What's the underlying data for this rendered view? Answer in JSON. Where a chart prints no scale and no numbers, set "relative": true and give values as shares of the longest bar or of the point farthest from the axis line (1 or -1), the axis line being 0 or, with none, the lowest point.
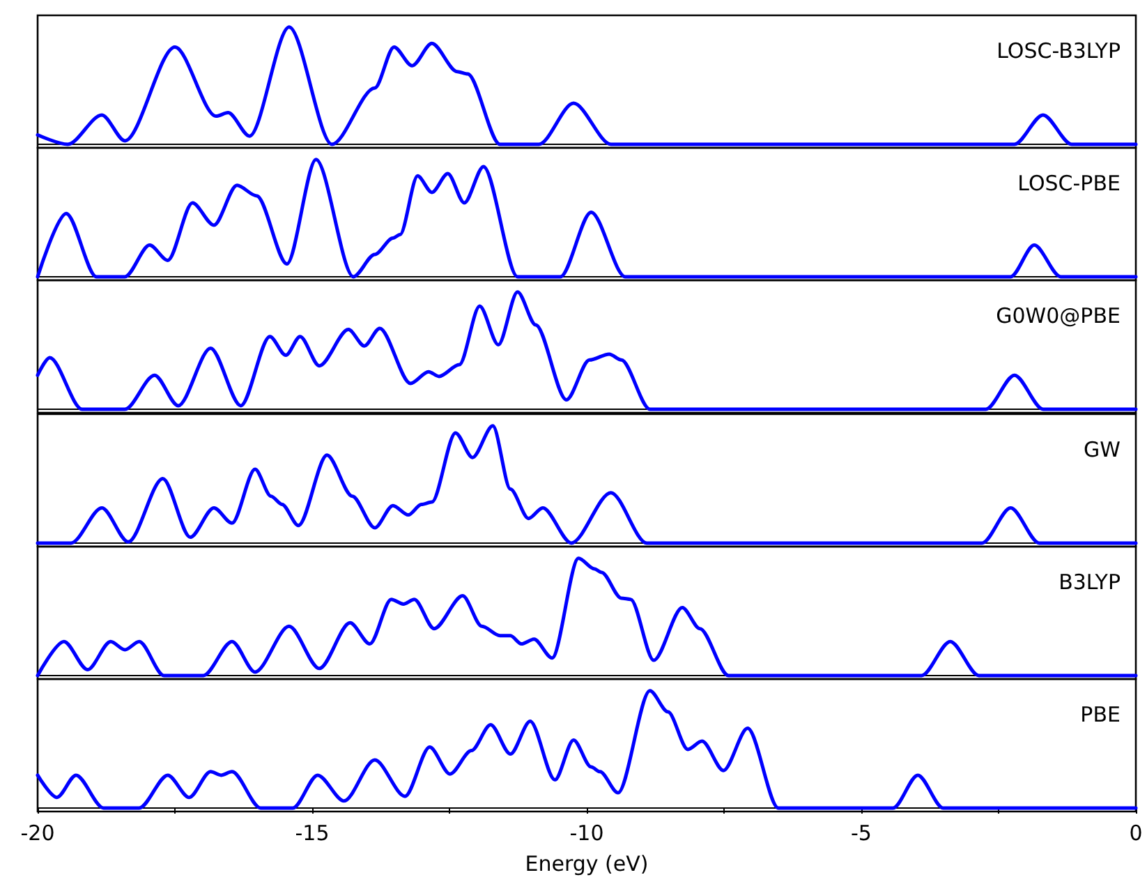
{
  "chart_data": [
    {
      "type": "line",
      "title": "LOSC-B3LYP",
      "relative": true,
      "xlim": [
        -20,
        0
      ],
      "tick_labels": false,
      "color": "#0000ff",
      "x": [
        -20,
        -19.45,
        -18.83,
        -18.41,
        -17.5,
        -16.75,
        -16.53,
        -16.14,
        -15.42,
        -14.64,
        -13.86,
        -13.51,
        -13.18,
        -12.82,
        -12.36,
        -12.17,
        -11.58,
        -10.87,
        -10.24,
        -9.56,
        -2.21,
        -1.69,
        -1.17,
        0
      ],
      "values": [
        0.08,
        0,
        0.25,
        0.03,
        0.83,
        0.24,
        0.27,
        0.07,
        1,
        0,
        0.48,
        0.83,
        0.67,
        0.86,
        0.62,
        0.6,
        0,
        0,
        0.35,
        0,
        0,
        0.25,
        0,
        0
      ]
    },
    {
      "type": "line",
      "title": "LOSC-PBE",
      "relative": true,
      "xlim": [
        -20,
        0
      ],
      "tick_labels": false,
      "color": "#0000ff",
      "x": [
        -20,
        -19.48,
        -18.93,
        -18.41,
        -17.96,
        -17.63,
        -17.18,
        -16.79,
        -16.37,
        -16.01,
        -15.46,
        -14.93,
        -14.25,
        -13.86,
        -13.53,
        -13.4,
        -13.08,
        -12.82,
        -12.53,
        -12.23,
        -11.88,
        -11.26,
        -10.48,
        -9.92,
        -9.3,
        -2.28,
        -1.85,
        -1.37,
        0
      ],
      "values": [
        0,
        0.54,
        0,
        0,
        0.27,
        0.14,
        0.63,
        0.44,
        0.78,
        0.69,
        0.11,
        1,
        0,
        0.19,
        0.33,
        0.36,
        0.86,
        0.72,
        0.88,
        0.63,
        0.94,
        0,
        0,
        0.55,
        0,
        0,
        0.27,
        0,
        0
      ]
    },
    {
      "type": "line",
      "title": "G0W0@PBE",
      "relative": true,
      "xlim": [
        -20,
        0
      ],
      "tick_labels": false,
      "color": "#0000ff",
      "x": [
        -20,
        -19.78,
        -19.19,
        -18.41,
        -17.87,
        -17.44,
        -16.85,
        -16.3,
        -15.77,
        -15.48,
        -15.22,
        -14.87,
        -14.34,
        -14.05,
        -13.77,
        -13.21,
        -12.88,
        -12.69,
        -12.32,
        -11.95,
        -11.61,
        -11.26,
        -10.93,
        -10.37,
        -9.95,
        -9.59,
        -9.37,
        -8.85,
        -2.73,
        -2.21,
        -1.69,
        0
      ],
      "values": [
        0.29,
        0.44,
        0,
        0,
        0.29,
        0.03,
        0.52,
        0.03,
        0.62,
        0.46,
        0.62,
        0.37,
        0.68,
        0.54,
        0.69,
        0.22,
        0.32,
        0.28,
        0.38,
        0.88,
        0.55,
        1,
        0.72,
        0.08,
        0.42,
        0.47,
        0.42,
        0,
        0,
        0.29,
        0,
        0
      ]
    },
    {
      "type": "line",
      "title": "GW",
      "relative": true,
      "xlim": [
        -20,
        0
      ],
      "tick_labels": false,
      "color": "#0000ff",
      "x": [
        -20,
        -19.39,
        -18.83,
        -18.35,
        -17.72,
        -17.22,
        -16.79,
        -16.46,
        -16.04,
        -15.75,
        -15.55,
        -15.25,
        -14.73,
        -14.27,
        -13.86,
        -13.53,
        -13.25,
        -13.01,
        -12.82,
        -12.39,
        -12.08,
        -11.71,
        -11.39,
        -11.06,
        -10.8,
        -10.28,
        -9.56,
        -8.91,
        -2.8,
        -2.28,
        -1.76,
        0
      ],
      "values": [
        0,
        0,
        0.3,
        0.01,
        0.55,
        0.05,
        0.3,
        0.17,
        0.63,
        0.4,
        0.33,
        0.15,
        0.75,
        0.4,
        0.13,
        0.32,
        0.24,
        0.33,
        0.35,
        0.94,
        0.73,
        1,
        0.46,
        0.21,
        0.3,
        0,
        0.43,
        0,
        0,
        0.3,
        0,
        0
      ]
    },
    {
      "type": "line",
      "title": "B3LYP",
      "relative": true,
      "xlim": [
        -20,
        0
      ],
      "tick_labels": false,
      "color": "#0000ff",
      "x": [
        -20,
        -19.52,
        -19.09,
        -18.67,
        -18.41,
        -18.15,
        -17.7,
        -16.98,
        -16.46,
        -16.04,
        -15.42,
        -14.87,
        -14.31,
        -13.95,
        -13.56,
        -13.34,
        -13.14,
        -12.78,
        -12.26,
        -11.91,
        -11.58,
        -11.39,
        -11.19,
        -10.96,
        -10.63,
        -10.15,
        -9.86,
        -9.73,
        -9.37,
        -9.2,
        -8.78,
        -8.26,
        -7.94,
        -7.42,
        -3.9,
        -3.38,
        -2.86,
        0
      ],
      "values": [
        0,
        0.29,
        0.05,
        0.29,
        0.22,
        0.29,
        0,
        0,
        0.29,
        0.03,
        0.42,
        0.06,
        0.45,
        0.27,
        0.65,
        0.61,
        0.65,
        0.4,
        0.68,
        0.42,
        0.34,
        0.34,
        0.27,
        0.31,
        0.15,
        1,
        0.91,
        0.88,
        0.66,
        0.65,
        0.13,
        0.58,
        0.4,
        0,
        0,
        0.29,
        0,
        0
      ]
    },
    {
      "type": "line",
      "title": "PBE",
      "relative": true,
      "xlim": [
        -20,
        0
      ],
      "xlabel": "Energy (eV)",
      "color": "#0000ff",
      "xticks": [
        -20,
        {
          "value": -17.5,
          "label": null
        },
        -15,
        {
          "value": -12.5,
          "label": null
        },
        -10,
        {
          "value": -7.5,
          "label": null
        },
        -5,
        {
          "value": -2.5,
          "label": null
        },
        0
      ],
      "tick_labels": "x",
      "x": [
        -20,
        -19.65,
        -19.3,
        -18.8,
        -18.15,
        -17.63,
        -17.24,
        -16.85,
        -16.66,
        -16.46,
        -15.94,
        -15.35,
        -14.9,
        -14.42,
        -13.86,
        -13.31,
        -12.86,
        -12.49,
        -12.1,
        -11.75,
        -11.39,
        -11.03,
        -10.58,
        -10.24,
        -9.92,
        -9.76,
        -9.43,
        -8.85,
        -8.52,
        -8.16,
        -7.9,
        -7.51,
        -7.07,
        -6.51,
        -4.42,
        -3.97,
        -3.51,
        0
      ],
      "values": [
        0.28,
        0.09,
        0.28,
        0,
        0,
        0.28,
        0.09,
        0.31,
        0.28,
        0.31,
        0,
        0,
        0.28,
        0.06,
        0.41,
        0.1,
        0.52,
        0.29,
        0.49,
        0.71,
        0.46,
        0.74,
        0.24,
        0.58,
        0.35,
        0.31,
        0.13,
        1,
        0.82,
        0.5,
        0.57,
        0.32,
        0.68,
        0,
        0,
        0.28,
        0,
        0
      ]
    }
  ]
}
